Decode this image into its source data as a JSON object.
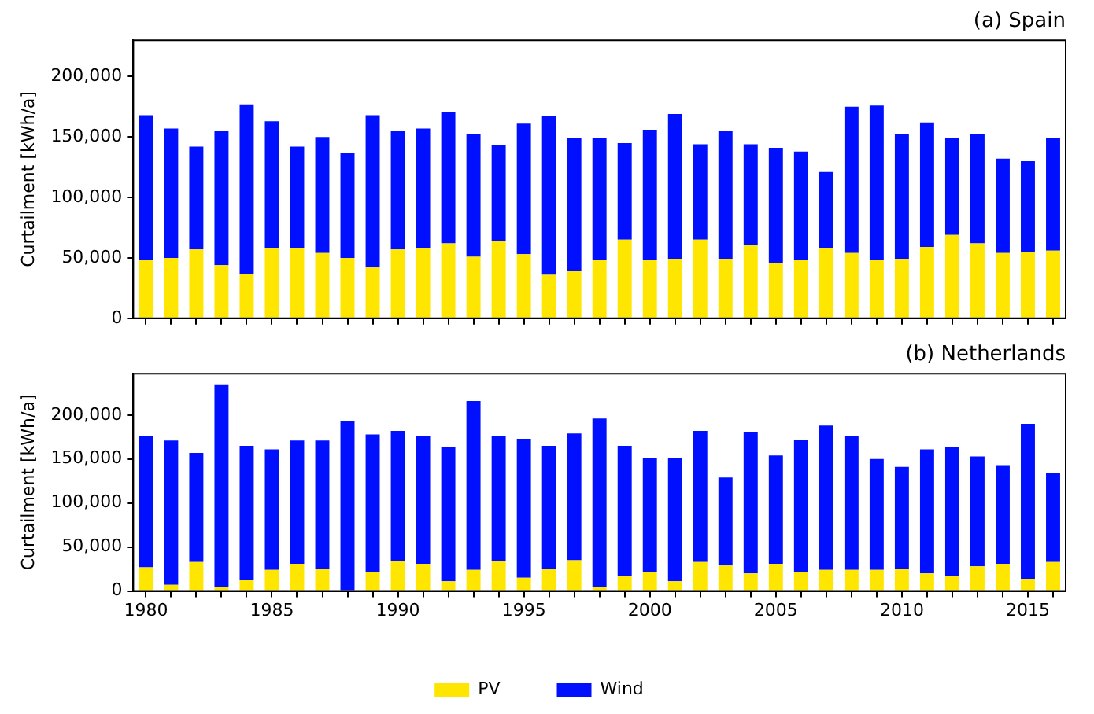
{
  "chart_data": [
    {
      "type": "bar",
      "title": "(a) Spain",
      "ylabel": "Curtailment [kWh/a]",
      "stacked": true,
      "tick_labels": "y",
      "grid": false,
      "legend": false,
      "categories": [
        "1980",
        null,
        null,
        null,
        null,
        "1985",
        null,
        null,
        null,
        null,
        "1990",
        null,
        null,
        null,
        null,
        "1995",
        null,
        null,
        null,
        null,
        "2000",
        null,
        null,
        null,
        null,
        "2005",
        null,
        null,
        null,
        null,
        "2010",
        null,
        null,
        null,
        null,
        "2015",
        null
      ],
      "ylim": [
        0,
        230000
      ],
      "yticks": [
        {
          "value": 0,
          "label": "0"
        },
        {
          "value": 50000,
          "label": "50,000"
        },
        {
          "value": 100000,
          "label": "100,000"
        },
        {
          "value": 150000,
          "label": "150,000"
        },
        {
          "value": 200000,
          "label": "200,000"
        }
      ],
      "series": [
        {
          "color": "#ffe600",
          "values": [
            48000,
            50000,
            57000,
            44000,
            37000,
            58000,
            58000,
            54000,
            50000,
            42000,
            57000,
            58000,
            62000,
            51000,
            64000,
            53000,
            36000,
            39000,
            48000,
            65000,
            48000,
            49000,
            65000,
            49000,
            61000,
            46000,
            48000,
            58000,
            54000,
            48000,
            49000,
            59000,
            69000,
            62000,
            54000,
            55000,
            56000
          ]
        },
        {
          "color": "#0010ff",
          "values": [
            120000,
            107000,
            85000,
            111000,
            140000,
            105000,
            84000,
            96000,
            87000,
            126000,
            98000,
            99000,
            109000,
            101000,
            79000,
            108000,
            131000,
            110000,
            101000,
            80000,
            108000,
            120000,
            79000,
            106000,
            83000,
            95000,
            90000,
            63000,
            121000,
            128000,
            103000,
            103000,
            80000,
            90000,
            78000,
            75000,
            93000
          ]
        }
      ]
    },
    {
      "type": "bar",
      "title": "(b) Netherlands",
      "ylabel": "Curtailment [kWh/a]",
      "stacked": true,
      "grid": false,
      "legend": "bottom",
      "categories": [
        "1980",
        null,
        null,
        null,
        null,
        "1985",
        null,
        null,
        null,
        null,
        "1990",
        null,
        null,
        null,
        null,
        "1995",
        null,
        null,
        null,
        null,
        "2000",
        null,
        null,
        null,
        null,
        "2005",
        null,
        null,
        null,
        null,
        "2010",
        null,
        null,
        null,
        null,
        "2015",
        null
      ],
      "ylim": [
        0,
        247000
      ],
      "yticks": [
        {
          "value": 0,
          "label": "0"
        },
        {
          "value": 50000,
          "label": "50,000"
        },
        {
          "value": 100000,
          "label": "100,000"
        },
        {
          "value": 150000,
          "label": "150,000"
        },
        {
          "value": 200000,
          "label": "200,000"
        }
      ],
      "series": [
        {
          "name": "PV",
          "color": "#ffe600",
          "values": [
            27000,
            7000,
            33000,
            4000,
            13000,
            24000,
            31000,
            25000,
            0,
            21000,
            34000,
            31000,
            11000,
            24000,
            34000,
            15000,
            25000,
            35000,
            4000,
            17000,
            22000,
            11000,
            33000,
            29000,
            20000,
            31000,
            22000,
            24000,
            24000,
            24000,
            25000,
            20000,
            17000,
            28000,
            31000,
            14000,
            33000
          ]
        },
        {
          "name": "Wind",
          "color": "#0010ff",
          "values": [
            149000,
            164000,
            124000,
            231000,
            152000,
            137000,
            140000,
            146000,
            193000,
            157000,
            148000,
            145000,
            153000,
            192000,
            142000,
            158000,
            140000,
            144000,
            192000,
            148000,
            129000,
            140000,
            149000,
            100000,
            161000,
            123000,
            150000,
            164000,
            152000,
            126000,
            116000,
            141000,
            147000,
            125000,
            112000,
            176000,
            101000
          ]
        }
      ]
    }
  ]
}
